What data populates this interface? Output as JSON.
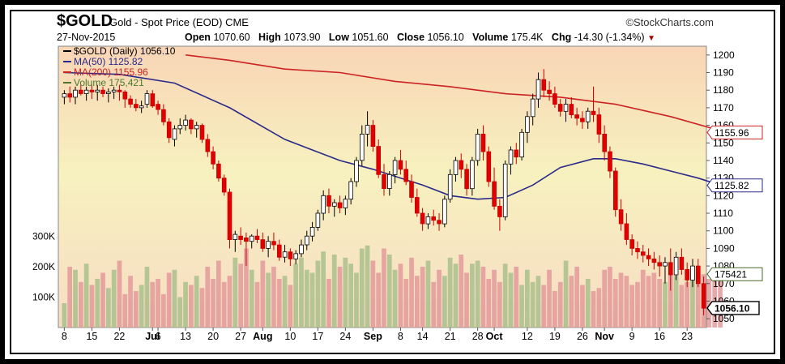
{
  "header": {
    "ticker": "$GOLD",
    "description": "Gold - Spot Price (EOD)",
    "exchange": "CME",
    "brand": "©StockCharts.com",
    "date": "27-Nov-2015",
    "open_label": "Open",
    "open": "1070.60",
    "high_label": "High",
    "high": "1073.90",
    "low_label": "Low",
    "low": "1051.60",
    "close_label": "Close",
    "close": "1056.10",
    "volume_label": "Volume",
    "volume": "175.4K",
    "chg_label": "Chg",
    "chg": "-14.30 (-1.34%)"
  },
  "legend": [
    {
      "text": "$GOLD (Daily) 1056.10",
      "color": "#000000"
    },
    {
      "text": "MA(50) 1125.82",
      "color": "#2a2a8a"
    },
    {
      "text": "MA(200) 1155.96",
      "color": "#cc2222"
    },
    {
      "text": "Volume 175,421",
      "color": "#4a7a2a"
    }
  ],
  "chart_data": {
    "type": "candlestick",
    "price_axis": {
      "min": 1045,
      "max": 1205,
      "ticks": [
        1050,
        1060,
        1070,
        1080,
        1090,
        1100,
        1110,
        1120,
        1130,
        1140,
        1150,
        1160,
        1170,
        1180,
        1190,
        1200
      ]
    },
    "volume_axis": {
      "max": 400000,
      "tick_values": [
        100000,
        200000,
        300000
      ],
      "tick_labels": [
        "100K",
        "200K",
        "300K"
      ]
    },
    "x_tick_labels": [
      "8",
      "15",
      "22",
      "Jul",
      "6",
      "13",
      "20",
      "27",
      "Aug",
      "10",
      "17",
      "24",
      "Sep",
      "8",
      "14",
      "21",
      "28",
      "Oct",
      "12",
      "19",
      "26",
      "Nov",
      "9",
      "16",
      "23"
    ],
    "x_tick_index": [
      0,
      5,
      10,
      16,
      17,
      22,
      27,
      32,
      36,
      41,
      46,
      51,
      56,
      61,
      65,
      70,
      75,
      78,
      84,
      89,
      94,
      98,
      103,
      108,
      113
    ],
    "x_tick_bold": [
      false,
      false,
      false,
      true,
      false,
      false,
      false,
      false,
      true,
      false,
      false,
      false,
      true,
      false,
      false,
      false,
      false,
      true,
      false,
      false,
      false,
      true,
      false,
      false,
      false
    ],
    "ohlc": [
      [
        1176,
        1180,
        1172,
        1178
      ],
      [
        1178,
        1182,
        1173,
        1176
      ],
      [
        1176,
        1182,
        1172,
        1180
      ],
      [
        1180,
        1183,
        1177,
        1178
      ],
      [
        1178,
        1182,
        1174,
        1180
      ],
      [
        1180,
        1183,
        1175,
        1179
      ],
      [
        1179,
        1183,
        1174,
        1180
      ],
      [
        1180,
        1182,
        1176,
        1178
      ],
      [
        1178,
        1181,
        1173,
        1179
      ],
      [
        1179,
        1182,
        1175,
        1180
      ],
      [
        1180,
        1183,
        1174,
        1179
      ],
      [
        1179,
        1180,
        1170,
        1175
      ],
      [
        1175,
        1177,
        1170,
        1172
      ],
      [
        1172,
        1175,
        1168,
        1170
      ],
      [
        1170,
        1174,
        1167,
        1171
      ],
      [
        1172,
        1180,
        1170,
        1178
      ],
      [
        1178,
        1180,
        1170,
        1171
      ],
      [
        1172,
        1174,
        1166,
        1169
      ],
      [
        1169,
        1172,
        1160,
        1162
      ],
      [
        1162,
        1164,
        1150,
        1153
      ],
      [
        1152,
        1160,
        1148,
        1158
      ],
      [
        1158,
        1164,
        1155,
        1160
      ],
      [
        1160,
        1166,
        1157,
        1163
      ],
      [
        1163,
        1164,
        1155,
        1158
      ],
      [
        1158,
        1162,
        1153,
        1160
      ],
      [
        1160,
        1161,
        1150,
        1152
      ],
      [
        1152,
        1155,
        1142,
        1145
      ],
      [
        1145,
        1148,
        1135,
        1138
      ],
      [
        1138,
        1140,
        1128,
        1130
      ],
      [
        1130,
        1132,
        1120,
        1122
      ],
      [
        1122,
        1124,
        1090,
        1095
      ],
      [
        1095,
        1100,
        1088,
        1098
      ],
      [
        1097,
        1102,
        1092,
        1095
      ],
      [
        1096,
        1099,
        1080,
        1094
      ],
      [
        1094,
        1098,
        1090,
        1097
      ],
      [
        1097,
        1101,
        1093,
        1095
      ],
      [
        1095,
        1099,
        1088,
        1090
      ],
      [
        1090,
        1097,
        1085,
        1094
      ],
      [
        1094,
        1099,
        1089,
        1092
      ],
      [
        1092,
        1095,
        1083,
        1085
      ],
      [
        1085,
        1092,
        1082,
        1088
      ],
      [
        1088,
        1090,
        1080,
        1084
      ],
      [
        1084,
        1089,
        1081,
        1087
      ],
      [
        1087,
        1095,
        1085,
        1092
      ],
      [
        1092,
        1100,
        1089,
        1097
      ],
      [
        1097,
        1105,
        1094,
        1102
      ],
      [
        1102,
        1112,
        1100,
        1110
      ],
      [
        1110,
        1123,
        1106,
        1120
      ],
      [
        1120,
        1124,
        1110,
        1114
      ],
      [
        1114,
        1118,
        1108,
        1116
      ],
      [
        1116,
        1120,
        1110,
        1113
      ],
      [
        1113,
        1120,
        1109,
        1118
      ],
      [
        1118,
        1130,
        1115,
        1128
      ],
      [
        1128,
        1142,
        1125,
        1140
      ],
      [
        1140,
        1160,
        1137,
        1155
      ],
      [
        1155,
        1168,
        1148,
        1160
      ],
      [
        1160,
        1163,
        1145,
        1148
      ],
      [
        1148,
        1152,
        1130,
        1132
      ],
      [
        1132,
        1138,
        1120,
        1124
      ],
      [
        1124,
        1134,
        1120,
        1132
      ],
      [
        1132,
        1142,
        1127,
        1140
      ],
      [
        1140,
        1146,
        1132,
        1135
      ],
      [
        1135,
        1140,
        1126,
        1128
      ],
      [
        1128,
        1132,
        1116,
        1119
      ],
      [
        1119,
        1124,
        1108,
        1110
      ],
      [
        1110,
        1113,
        1100,
        1104
      ],
      [
        1104,
        1110,
        1101,
        1108
      ],
      [
        1108,
        1112,
        1103,
        1106
      ],
      [
        1106,
        1110,
        1100,
        1104
      ],
      [
        1104,
        1120,
        1102,
        1118
      ],
      [
        1118,
        1135,
        1116,
        1132
      ],
      [
        1132,
        1142,
        1128,
        1140
      ],
      [
        1140,
        1144,
        1130,
        1135
      ],
      [
        1135,
        1138,
        1120,
        1124
      ],
      [
        1124,
        1142,
        1120,
        1140
      ],
      [
        1140,
        1158,
        1137,
        1155
      ],
      [
        1155,
        1160,
        1140,
        1145
      ],
      [
        1145,
        1148,
        1125,
        1128
      ],
      [
        1128,
        1136,
        1112,
        1114
      ],
      [
        1114,
        1118,
        1100,
        1108
      ],
      [
        1108,
        1140,
        1106,
        1138
      ],
      [
        1138,
        1148,
        1132,
        1146
      ],
      [
        1146,
        1150,
        1138,
        1142
      ],
      [
        1142,
        1158,
        1140,
        1156
      ],
      [
        1156,
        1168,
        1150,
        1165
      ],
      [
        1165,
        1178,
        1160,
        1175
      ],
      [
        1175,
        1190,
        1170,
        1186
      ],
      [
        1186,
        1192,
        1176,
        1180
      ],
      [
        1180,
        1185,
        1174,
        1178
      ],
      [
        1178,
        1182,
        1170,
        1172
      ],
      [
        1172,
        1175,
        1165,
        1168
      ],
      [
        1168,
        1175,
        1162,
        1172
      ],
      [
        1172,
        1176,
        1164,
        1166
      ],
      [
        1166,
        1170,
        1160,
        1164
      ],
      [
        1164,
        1168,
        1158,
        1162
      ],
      [
        1162,
        1170,
        1158,
        1168
      ],
      [
        1168,
        1182,
        1162,
        1166
      ],
      [
        1166,
        1170,
        1150,
        1155
      ],
      [
        1155,
        1160,
        1140,
        1145
      ],
      [
        1145,
        1148,
        1130,
        1134
      ],
      [
        1134,
        1136,
        1108,
        1112
      ],
      [
        1112,
        1118,
        1100,
        1104
      ],
      [
        1104,
        1110,
        1092,
        1095
      ],
      [
        1095,
        1098,
        1086,
        1090
      ],
      [
        1090,
        1094,
        1084,
        1088
      ],
      [
        1088,
        1092,
        1082,
        1086
      ],
      [
        1086,
        1090,
        1080,
        1084
      ],
      [
        1084,
        1088,
        1078,
        1082
      ],
      [
        1082,
        1086,
        1074,
        1080
      ],
      [
        1080,
        1085,
        1070,
        1082
      ],
      [
        1082,
        1090,
        1066,
        1075
      ],
      [
        1075,
        1088,
        1072,
        1085
      ],
      [
        1085,
        1090,
        1075,
        1078
      ],
      [
        1078,
        1082,
        1068,
        1072
      ],
      [
        1072,
        1084,
        1068,
        1080
      ],
      [
        1080,
        1084,
        1068,
        1070
      ],
      [
        1070,
        1074,
        1052,
        1056
      ]
    ],
    "ma50": [
      [
        0,
        1190
      ],
      [
        10,
        1189
      ],
      [
        20,
        1184
      ],
      [
        30,
        1170
      ],
      [
        40,
        1152
      ],
      [
        50,
        1140
      ],
      [
        56,
        1135
      ],
      [
        65,
        1126
      ],
      [
        70,
        1120
      ],
      [
        75,
        1118
      ],
      [
        80,
        1119
      ],
      [
        85,
        1126
      ],
      [
        90,
        1136
      ],
      [
        96,
        1141
      ],
      [
        100,
        1141
      ],
      [
        105,
        1138
      ],
      [
        110,
        1134
      ],
      [
        115,
        1130
      ],
      [
        119,
        1126
      ]
    ],
    "ma200": [
      [
        22,
        1200
      ],
      [
        30,
        1197
      ],
      [
        40,
        1192
      ],
      [
        50,
        1190
      ],
      [
        60,
        1185
      ],
      [
        70,
        1182
      ],
      [
        80,
        1178
      ],
      [
        90,
        1176
      ],
      [
        100,
        1172
      ],
      [
        110,
        1165
      ],
      [
        119,
        1157
      ]
    ],
    "volume": [
      80000,
      200000,
      190000,
      150000,
      210000,
      140000,
      160000,
      180000,
      130000,
      190000,
      220000,
      110000,
      170000,
      120000,
      140000,
      200000,
      150000,
      160000,
      110000,
      180000,
      190000,
      100000,
      150000,
      140000,
      170000,
      130000,
      200000,
      160000,
      220000,
      150000,
      170000,
      230000,
      210000,
      260000,
      190000,
      150000,
      220000,
      180000,
      200000,
      160000,
      170000,
      140000,
      210000,
      230000,
      190000,
      180000,
      220000,
      250000,
      160000,
      240000,
      200000,
      230000,
      210000,
      180000,
      260000,
      270000,
      220000,
      180000,
      260000,
      240000,
      190000,
      210000,
      160000,
      230000,
      170000,
      200000,
      220000,
      150000,
      190000,
      170000,
      230000,
      210000,
      240000,
      180000,
      210000,
      220000,
      200000,
      160000,
      190000,
      150000,
      210000,
      180000,
      200000,
      140000,
      190000,
      150000,
      170000,
      140000,
      190000,
      120000,
      150000,
      220000,
      170000,
      200000,
      140000,
      160000,
      120000,
      130000,
      190000,
      200000,
      160000,
      180000,
      170000,
      140000,
      150000,
      190000,
      170000,
      180000,
      160000,
      150000,
      180000,
      170000,
      140000,
      150000,
      160000,
      170000,
      175421,
      160000,
      180000,
      175421
    ],
    "price_markers": [
      {
        "label": "1155.96",
        "value": 1155.96,
        "color": "#cc2222"
      },
      {
        "label": "1125.82",
        "value": 1125.82,
        "color": "#2a2a8a"
      },
      {
        "label": "175421",
        "value": 175421,
        "color": "#4a6a2a",
        "axis": "volume"
      },
      {
        "label": "1056.10",
        "value": 1056.1,
        "color": "#000000"
      }
    ]
  }
}
